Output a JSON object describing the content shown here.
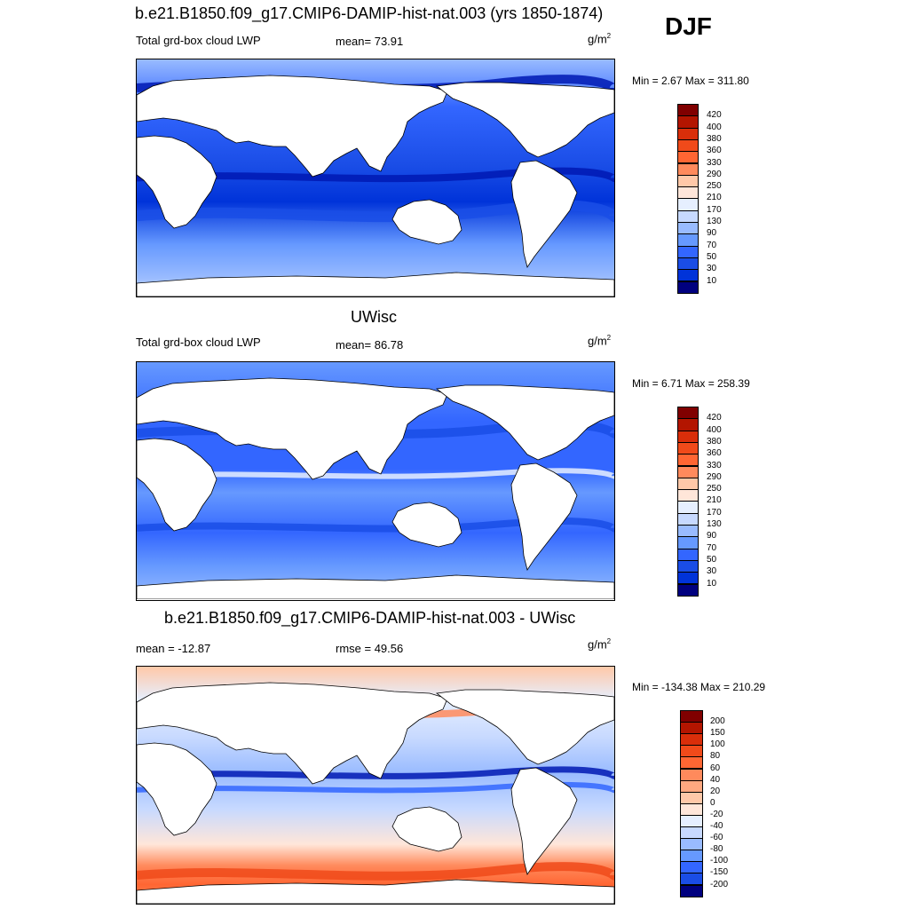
{
  "season": "DJF",
  "palette_full": [
    "#00007f",
    "#0019b3",
    "#0033d9",
    "#1a4de6",
    "#3366ff",
    "#6699ff",
    "#99bbff",
    "#c7d9ff",
    "#e6efff",
    "#ffe6d9",
    "#ffc8a8",
    "#ffa880",
    "#ff8a5c",
    "#ff6633",
    "#f04a1a",
    "#d92e0a",
    "#b31500",
    "#800000"
  ],
  "panels": [
    {
      "id": "model",
      "title": "b.e21.B1850.f09_g17.CMIP6-DAMIP-hist-nat.003 (yrs 1850-1874)",
      "left_label": "Total grd-box cloud LWP",
      "stat_label": "mean=  73.91",
      "units": "g/m",
      "units_sup": "2",
      "minmax": "Min =   2.67 Max = 311.80",
      "colorbar": {
        "levels": [
          "420",
          "400",
          "380",
          "360",
          "330",
          "290",
          "250",
          "210",
          "170",
          "130",
          "90",
          "70",
          "50",
          "30",
          "10"
        ],
        "colors": [
          "#800000",
          "#b31500",
          "#d92e0a",
          "#f04a1a",
          "#ff6633",
          "#ff8a5c",
          "#ffc8a8",
          "#ffe6d9",
          "#e6efff",
          "#c7d9ff",
          "#99bbff",
          "#6699ff",
          "#3366ff",
          "#1a4de6",
          "#0033d9",
          "#00007f"
        ]
      }
    },
    {
      "id": "obs",
      "title": "UWisc",
      "left_label": "Total grd-box cloud LWP",
      "stat_label": "mean=  86.78",
      "units": "g/m",
      "units_sup": "2",
      "minmax": "Min =   6.71 Max = 258.39",
      "colorbar": {
        "levels": [
          "420",
          "400",
          "380",
          "360",
          "330",
          "290",
          "250",
          "210",
          "170",
          "130",
          "90",
          "70",
          "50",
          "30",
          "10"
        ],
        "colors": [
          "#800000",
          "#b31500",
          "#d92e0a",
          "#f04a1a",
          "#ff6633",
          "#ff8a5c",
          "#ffc8a8",
          "#ffe6d9",
          "#e6efff",
          "#c7d9ff",
          "#99bbff",
          "#6699ff",
          "#3366ff",
          "#1a4de6",
          "#0033d9",
          "#00007f"
        ]
      }
    },
    {
      "id": "diff",
      "title": "b.e21.B1850.f09_g17.CMIP6-DAMIP-hist-nat.003 - UWisc",
      "left_label": "mean = -12.87",
      "stat_label": "rmse =  49.56",
      "units": "g/m",
      "units_sup": "2",
      "minmax": "Min = -134.38 Max = 210.29",
      "colorbar": {
        "levels": [
          "200",
          "150",
          "100",
          "80",
          "60",
          "40",
          "20",
          "0",
          "-20",
          "-40",
          "-60",
          "-80",
          "-100",
          "-150",
          "-200"
        ],
        "colors": [
          "#800000",
          "#b31500",
          "#d92e0a",
          "#f04a1a",
          "#ff6633",
          "#ff8a5c",
          "#ffa880",
          "#ffc8a8",
          "#ffe6d9",
          "#e6efff",
          "#c7d9ff",
          "#99bbff",
          "#6699ff",
          "#3366ff",
          "#1a4de6",
          "#00007f"
        ]
      }
    }
  ]
}
